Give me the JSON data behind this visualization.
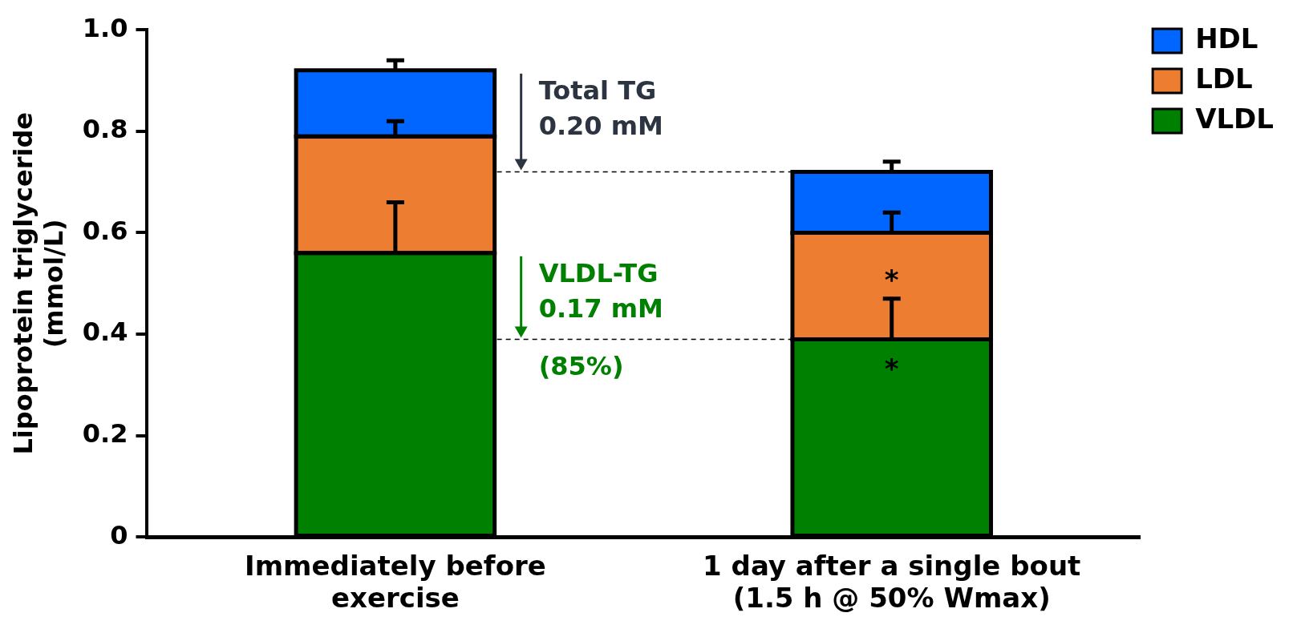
{
  "chart_data": {
    "type": "bar",
    "stacked": true,
    "ylabel": "Lipoprotein triglyceride\n(mmol/L)",
    "categories": [
      "Immediately before exercise",
      "1 day after a single bout (1.5 h @ 50% Wmax)"
    ],
    "series": [
      {
        "name": "VLDL",
        "color": "#008000",
        "values": [
          0.56,
          0.39
        ],
        "errors": [
          [
            0.56,
            0.66
          ],
          [
            0.39,
            0.47
          ]
        ]
      },
      {
        "name": "LDL",
        "color": "#ed7d31",
        "values": [
          0.23,
          0.21
        ],
        "errors": [
          [
            0.79,
            0.82
          ],
          [
            0.6,
            0.64
          ]
        ]
      },
      {
        "name": "HDL",
        "color": "#0066ff",
        "values": [
          0.13,
          0.12
        ],
        "errors": [
          [
            0.92,
            0.94
          ],
          [
            0.72,
            0.74
          ]
        ]
      }
    ],
    "ylim": [
      0,
      1
    ],
    "yticks": [
      0,
      0.2,
      0.4,
      0.6,
      0.8,
      {
        "value": 1,
        "label": "1.0"
      }
    ],
    "grid": false,
    "legend": "top right",
    "ref_lines": [
      {
        "axis": "y",
        "value": 0.72,
        "color": "#000000",
        "line_style": "dashed"
      },
      {
        "axis": "y",
        "value": 0.39,
        "color": "#000000",
        "line_style": "dashed"
      }
    ],
    "annotations": [
      {
        "text": "Total TG\n0.20 mM",
        "y": 0.72
      },
      {
        "text": "VLDL-TG\n0.17 mM",
        "y": 0.39
      },
      "(85%)",
      "*",
      "*"
    ]
  }
}
